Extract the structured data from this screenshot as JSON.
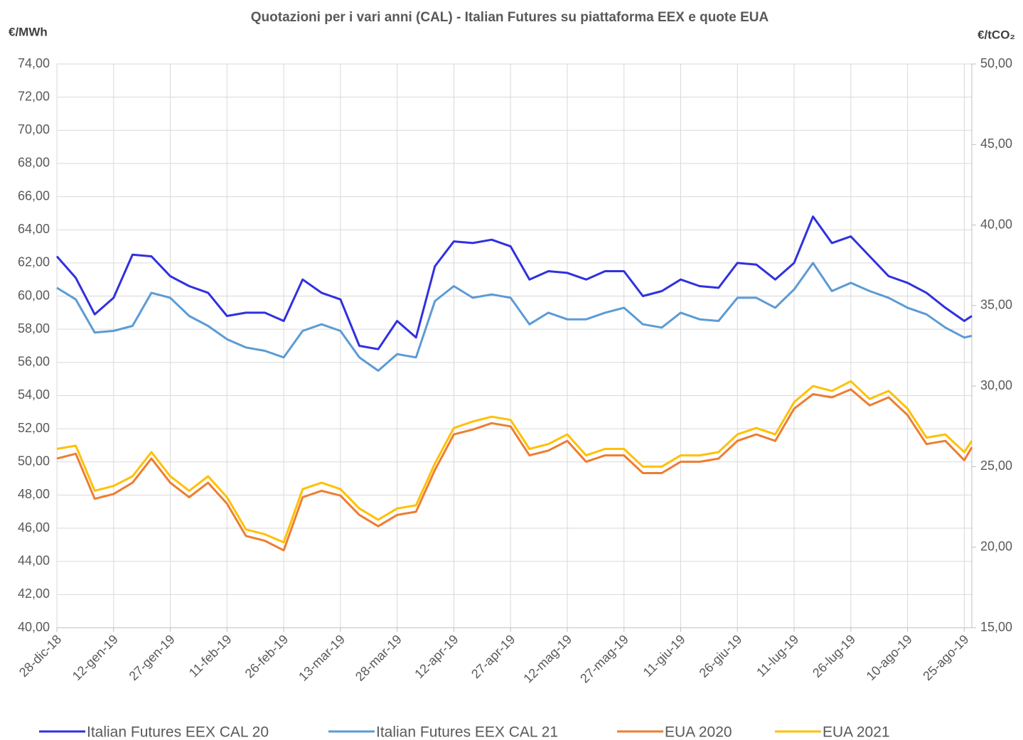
{
  "chart_data": {
    "type": "line",
    "title": "Quotazioni per i vari anni (CAL) - Italian Futures su piattaforma EEX e quote EUA",
    "y_label": "€/MWh",
    "y2_label": "€/tCO₂",
    "x": [
      "2018-12-28",
      "2019-01-02",
      "2019-01-07",
      "2019-01-12",
      "2019-01-17",
      "2019-01-22",
      "2019-01-27",
      "2019-02-01",
      "2019-02-06",
      "2019-02-11",
      "2019-02-16",
      "2019-02-21",
      "2019-02-26",
      "2019-03-03",
      "2019-03-08",
      "2019-03-13",
      "2019-03-18",
      "2019-03-23",
      "2019-03-28",
      "2019-04-02",
      "2019-04-07",
      "2019-04-12",
      "2019-04-17",
      "2019-04-22",
      "2019-04-27",
      "2019-05-02",
      "2019-05-07",
      "2019-05-12",
      "2019-05-17",
      "2019-05-22",
      "2019-05-27",
      "2019-06-01",
      "2019-06-06",
      "2019-06-11",
      "2019-06-16",
      "2019-06-21",
      "2019-06-26",
      "2019-07-01",
      "2019-07-06",
      "2019-07-11",
      "2019-07-16",
      "2019-07-21",
      "2019-07-26",
      "2019-07-31",
      "2019-08-05",
      "2019-08-10",
      "2019-08-15",
      "2019-08-20",
      "2019-08-25",
      "2019-08-27"
    ],
    "xlim": [
      "2018-12-28",
      "2019-08-27"
    ],
    "xticks": [
      {
        "value": "2018-12-28",
        "label": "28-dic-18"
      },
      {
        "value": "2019-01-12",
        "label": "12-gen-19"
      },
      {
        "value": "2019-01-27",
        "label": "27-gen-19"
      },
      {
        "value": "2019-02-11",
        "label": "11-feb-19"
      },
      {
        "value": "2019-02-26",
        "label": "26-feb-19"
      },
      {
        "value": "2019-03-13",
        "label": "13-mar-19"
      },
      {
        "value": "2019-03-28",
        "label": "28-mar-19"
      },
      {
        "value": "2019-04-12",
        "label": "12-apr-19"
      },
      {
        "value": "2019-04-27",
        "label": "27-apr-19"
      },
      {
        "value": "2019-05-12",
        "label": "12-mag-19"
      },
      {
        "value": "2019-05-27",
        "label": "27-mag-19"
      },
      {
        "value": "2019-06-11",
        "label": "11-giu-19"
      },
      {
        "value": "2019-06-26",
        "label": "26-giu-19"
      },
      {
        "value": "2019-07-11",
        "label": "11-lug-19"
      },
      {
        "value": "2019-07-26",
        "label": "26-lug-19"
      },
      {
        "value": "2019-08-10",
        "label": "10-ago-19"
      },
      {
        "value": "2019-08-25",
        "label": "25-ago-19"
      }
    ],
    "ylim": [
      40,
      74
    ],
    "yticks": [
      {
        "value": 40,
        "label": "40,00"
      },
      {
        "value": 42,
        "label": "42,00"
      },
      {
        "value": 44,
        "label": "44,00"
      },
      {
        "value": 46,
        "label": "46,00"
      },
      {
        "value": 48,
        "label": "48,00"
      },
      {
        "value": 50,
        "label": "50,00"
      },
      {
        "value": 52,
        "label": "52,00"
      },
      {
        "value": 54,
        "label": "54,00"
      },
      {
        "value": 56,
        "label": "56,00"
      },
      {
        "value": 58,
        "label": "58,00"
      },
      {
        "value": 60,
        "label": "60,00"
      },
      {
        "value": 62,
        "label": "62,00"
      },
      {
        "value": 64,
        "label": "64,00"
      },
      {
        "value": 66,
        "label": "66,00"
      },
      {
        "value": 68,
        "label": "68,00"
      },
      {
        "value": 70,
        "label": "70,00"
      },
      {
        "value": 72,
        "label": "72,00"
      },
      {
        "value": 74,
        "label": "74,00"
      }
    ],
    "y2lim": [
      15,
      50
    ],
    "y2ticks": [
      {
        "value": 15,
        "label": "15,00"
      },
      {
        "value": 20,
        "label": "20,00"
      },
      {
        "value": 25,
        "label": "25,00"
      },
      {
        "value": 30,
        "label": "30,00"
      },
      {
        "value": 35,
        "label": "35,00"
      },
      {
        "value": 40,
        "label": "40,00"
      },
      {
        "value": 45,
        "label": "45,00"
      },
      {
        "value": 50,
        "label": "50,00"
      }
    ],
    "grid": true,
    "legend": "bottom",
    "series": [
      {
        "name": "Italian Futures EEX CAL 20",
        "color": "#3030e0",
        "values": [
          62.4,
          61.1,
          58.9,
          59.9,
          62.5,
          62.4,
          61.2,
          60.6,
          60.2,
          58.8,
          59.0,
          59.0,
          58.5,
          61.0,
          60.2,
          59.8,
          57.0,
          56.8,
          58.5,
          57.5,
          61.8,
          63.3,
          63.2,
          63.4,
          63.0,
          61.0,
          61.5,
          61.4,
          61.0,
          61.5,
          61.5,
          60.0,
          60.3,
          61.0,
          60.6,
          60.5,
          62.0,
          61.9,
          61.0,
          62.0,
          64.8,
          63.2,
          63.6,
          62.4,
          61.2,
          60.8,
          60.2,
          59.3,
          58.5,
          58.8
        ]
      },
      {
        "name": "Italian Futures EEX CAL 21",
        "color": "#5b9bd5",
        "values": [
          60.5,
          59.8,
          57.8,
          57.9,
          58.2,
          60.2,
          59.9,
          58.8,
          58.2,
          57.4,
          56.9,
          56.7,
          56.3,
          57.9,
          58.3,
          57.9,
          56.3,
          55.5,
          56.5,
          56.3,
          59.7,
          60.6,
          59.9,
          60.1,
          59.9,
          58.3,
          59.0,
          58.6,
          58.6,
          59.0,
          59.3,
          58.3,
          58.1,
          59.0,
          58.6,
          58.5,
          59.9,
          59.9,
          59.3,
          60.4,
          62.0,
          60.3,
          60.8,
          60.3,
          59.9,
          59.3,
          58.9,
          58.1,
          57.5,
          57.6
        ]
      },
      {
        "name": "EUA 2020",
        "color": "#ed7d31",
        "axis": "y2",
        "values": [
          25.5,
          25.8,
          23.0,
          23.3,
          24.0,
          25.5,
          24.0,
          23.1,
          24.0,
          22.7,
          20.7,
          20.4,
          19.8,
          23.1,
          23.5,
          23.2,
          22.0,
          21.3,
          22.0,
          22.2,
          24.8,
          27.0,
          27.3,
          27.7,
          27.5,
          25.7,
          26.0,
          26.6,
          25.3,
          25.7,
          25.7,
          24.6,
          24.6,
          25.3,
          25.3,
          25.5,
          26.6,
          27.0,
          26.6,
          28.6,
          29.5,
          29.3,
          29.8,
          28.8,
          29.3,
          28.2,
          26.4,
          26.6,
          25.4,
          26.2
        ]
      },
      {
        "name": "EUA 2021",
        "color": "#ffc000",
        "axis": "y2",
        "values": [
          26.1,
          26.3,
          23.5,
          23.8,
          24.4,
          25.9,
          24.4,
          23.5,
          24.4,
          23.1,
          21.1,
          20.8,
          20.3,
          23.6,
          24.0,
          23.6,
          22.4,
          21.7,
          22.4,
          22.6,
          25.2,
          27.4,
          27.8,
          28.1,
          27.9,
          26.1,
          26.4,
          27.0,
          25.7,
          26.1,
          26.1,
          25.0,
          25.0,
          25.7,
          25.7,
          25.9,
          27.0,
          27.4,
          27.0,
          29.0,
          30.0,
          29.7,
          30.3,
          29.2,
          29.7,
          28.6,
          26.8,
          27.0,
          25.9,
          26.6
        ]
      }
    ]
  }
}
